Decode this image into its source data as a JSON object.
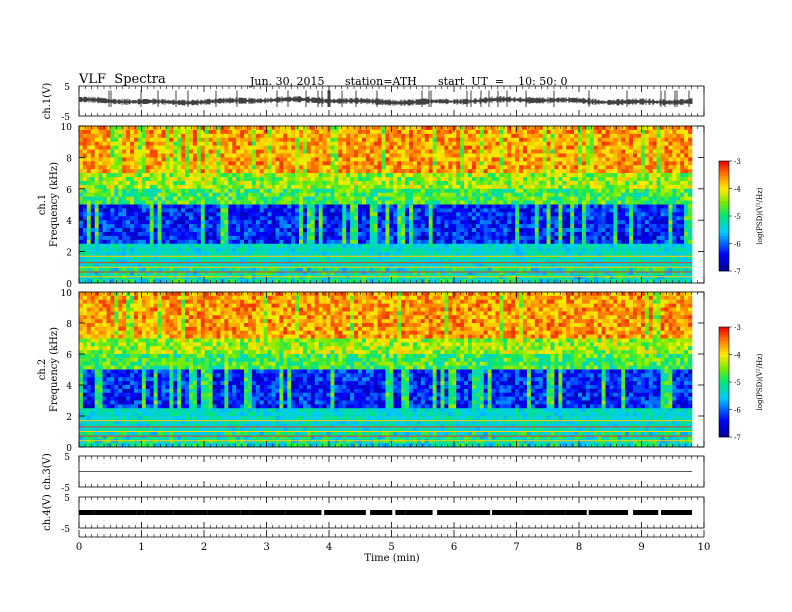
{
  "header": {
    "title": "VLF  Spectra",
    "date": "Jun. 30, 2015",
    "station": "station=ATH",
    "start": "start  UT  =    10: 50: 0"
  },
  "chart_data": [
    {
      "type": "line",
      "panel": "ch1-waveform",
      "ylabel": "ch.1(V)",
      "ylim": [
        -5,
        5
      ],
      "yticks": [
        "5",
        "-5"
      ],
      "x_range_min": [
        0,
        9.8
      ],
      "series": [
        {
          "values": [
            0.7,
            0.9,
            0.5,
            0.6,
            0.8,
            0.4,
            0.7,
            0.6,
            0.9,
            0.5,
            0.6,
            0.8,
            0.4,
            0.7,
            0.9,
            0.6,
            0.5,
            0.8,
            0.7,
            0.6
          ]
        }
      ]
    },
    {
      "type": "heatmap",
      "panel": "ch1-spectrogram",
      "ylabel": "Frequency  (kHz)",
      "channel_label": "ch.1",
      "yticks": [
        "0",
        "2",
        "4",
        "6",
        "8",
        "10"
      ],
      "ylim": [
        0,
        10
      ],
      "colorbar": {
        "label": "log(PSD)(V²/Hz)",
        "ticks": [
          "-3",
          "-4",
          "-5",
          "-6",
          "-7"
        ],
        "range": [
          -7,
          -3
        ]
      }
    },
    {
      "type": "heatmap",
      "panel": "ch2-spectrogram",
      "ylabel": "Frequency  (kHz)",
      "channel_label": "ch.2",
      "yticks": [
        "0",
        "2",
        "4",
        "6",
        "8",
        "10"
      ],
      "ylim": [
        0,
        10
      ],
      "colorbar": {
        "label": "log(PSD)(V²/Hz)",
        "ticks": [
          "-3",
          "-4",
          "-5",
          "-6",
          "-7"
        ],
        "range": [
          -7,
          -3
        ]
      }
    },
    {
      "type": "line",
      "panel": "ch3-waveform",
      "ylabel": "ch.3(V)",
      "ylim": [
        -5,
        5
      ],
      "yticks": [
        "5",
        "-5"
      ],
      "series": [
        {
          "values": [
            0,
            0
          ]
        }
      ]
    },
    {
      "type": "line",
      "panel": "ch4-waveform",
      "ylabel": "ch.4(V)",
      "ylim": [
        -5,
        5
      ],
      "yticks": [
        "5",
        "-5"
      ],
      "series": [
        {
          "values": [
            0,
            0
          ]
        }
      ]
    }
  ],
  "xaxis": {
    "label": "Time  (min)",
    "ticks": [
      "0",
      "1",
      "2",
      "3",
      "4",
      "5",
      "6",
      "7",
      "8",
      "9",
      "10"
    ],
    "range": [
      0,
      10
    ]
  }
}
